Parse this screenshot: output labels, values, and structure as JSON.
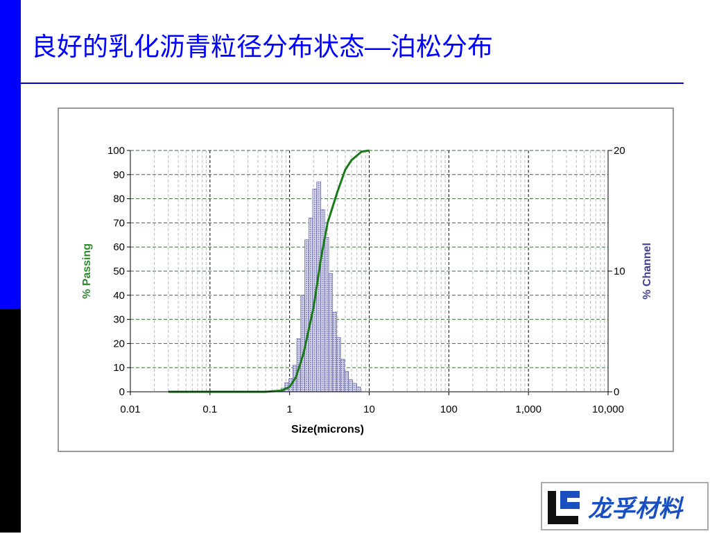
{
  "title": "良好的乳化沥青粒径分布状态—泊松分布",
  "logo_text": "龙孚材料",
  "chart_data": {
    "type": "combo",
    "xlabel": "Size(microns)",
    "ylabel": "% Passing",
    "y2label": "% Channel",
    "xscale": "log",
    "xlim": [
      0.01,
      10000
    ],
    "xticks": [
      0.01,
      0.1,
      1,
      10,
      100,
      {
        "value": 1000,
        "label": "1,000"
      },
      {
        "value": 10000,
        "label": "10,000"
      }
    ],
    "ylim": [
      0,
      100
    ],
    "yticks": [
      0,
      10,
      20,
      30,
      40,
      50,
      60,
      70,
      80,
      90,
      100
    ],
    "y2lim": [
      0,
      20
    ],
    "y2ticks": [
      0,
      10,
      20
    ],
    "grid": true,
    "minor_grid": true,
    "series": [
      {
        "type": "histogram",
        "axis": "y2",
        "color": "#a8a8d8",
        "bins": [
          0.78,
          0.87,
          0.98,
          1.1,
          1.23,
          1.38,
          1.55,
          1.74,
          1.95,
          2.19,
          2.46,
          2.76,
          3.1,
          3.47,
          3.9,
          4.37,
          4.91,
          5.5,
          6.17,
          6.93,
          7.78
        ],
        "values": [
          0.3,
          0.75,
          1.1,
          2.2,
          4.4,
          8,
          12.6,
          14.4,
          16.8,
          17.4,
          15.1,
          12.8,
          9.8,
          6.6,
          4.5,
          2.7,
          1.7,
          1.0,
          0.7,
          0.4
        ]
      },
      {
        "type": "line",
        "color": "#1a7a1a",
        "x": [
          0.03,
          0.1,
          0.5,
          0.8,
          1,
          1.2,
          1.5,
          2,
          2.5,
          3,
          4,
          5,
          6,
          8,
          10
        ],
        "values": [
          0,
          0,
          0,
          0.5,
          2,
          6,
          16,
          35,
          56,
          70,
          83,
          92,
          96,
          99.5,
          100
        ]
      }
    ]
  }
}
